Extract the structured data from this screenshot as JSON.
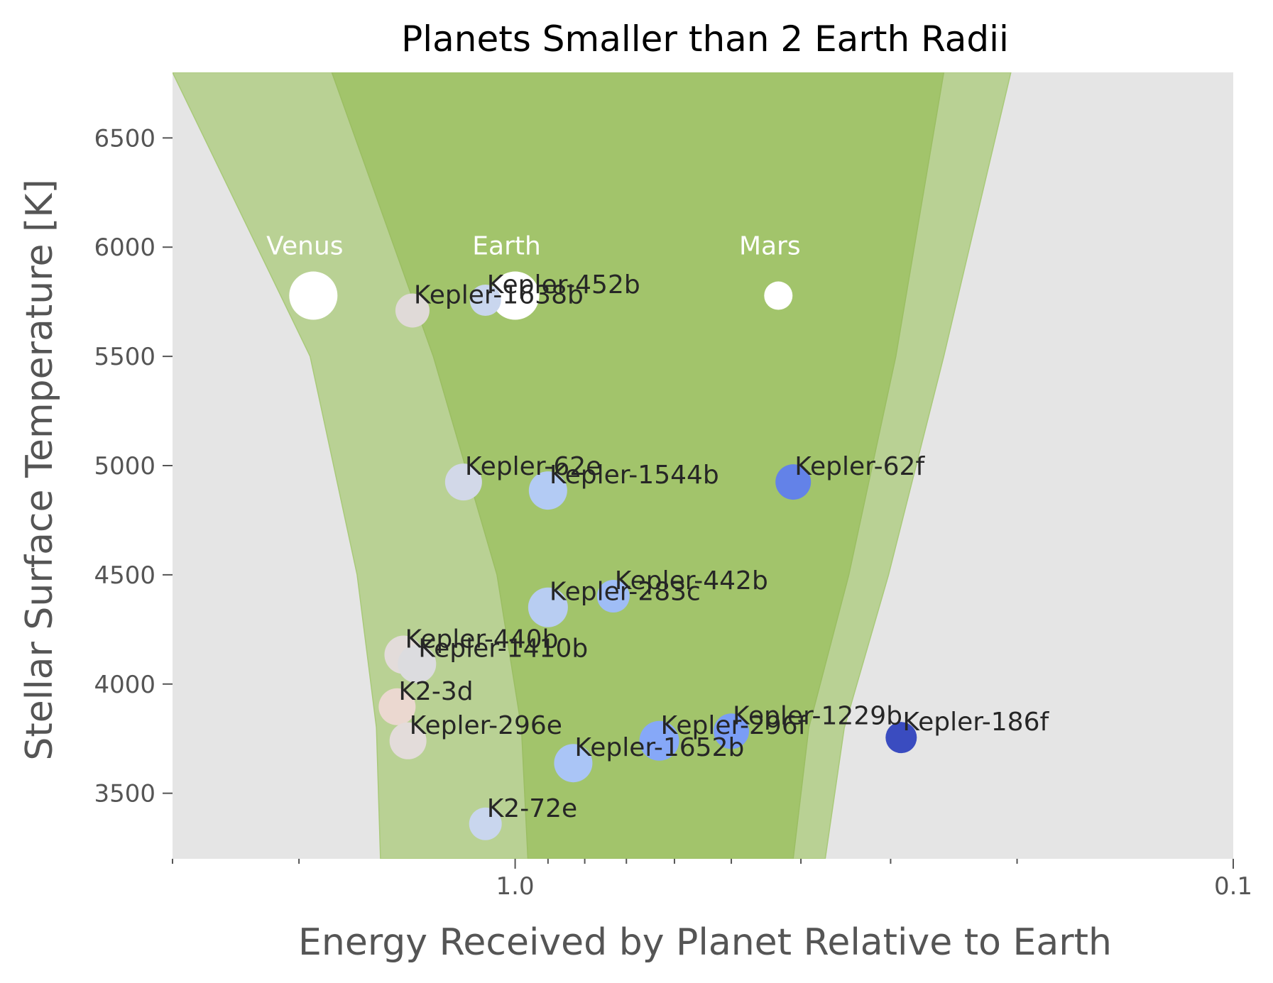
{
  "chart_data": {
    "type": "scatter",
    "title": "Planets Smaller than 2 Earth Radii",
    "xlabel": "Energy Received by Planet Relative to Earth",
    "ylabel": "Stellar Surface Temperature [K]",
    "x_scale": "log",
    "x_reversed": true,
    "xlim": [
      3.0,
      0.1
    ],
    "ylim": [
      3200,
      6800
    ],
    "grid": false,
    "x_ticks": [
      {
        "value": 1.0,
        "label": "1.0"
      },
      {
        "value": 0.1,
        "label": "0.1"
      }
    ],
    "x_minor_ticks": [
      3,
      2,
      0.9,
      0.8,
      0.7,
      0.6,
      0.5,
      0.4,
      0.3,
      0.2
    ],
    "y_ticks": [
      3500,
      4000,
      4500,
      5000,
      5500,
      6000,
      6500
    ],
    "habitable_zone": {
      "optimistic": {
        "inner": [
          [
            3.0,
            6800
          ],
          [
            1.93,
            5500
          ],
          [
            1.66,
            4500
          ],
          [
            1.56,
            3800
          ],
          [
            1.54,
            3200
          ]
        ],
        "outer": [
          [
            0.204,
            6800
          ],
          [
            0.253,
            5500
          ],
          [
            0.302,
            4500
          ],
          [
            0.348,
            3800
          ],
          [
            0.37,
            3200
          ]
        ],
        "color": "#b9d194"
      },
      "conservative": {
        "inner": [
          [
            1.8,
            6800
          ],
          [
            1.3,
            5500
          ],
          [
            1.06,
            4500
          ],
          [
            0.98,
            3800
          ],
          [
            0.96,
            3200
          ]
        ],
        "outer": [
          [
            0.253,
            6800
          ],
          [
            0.295,
            5500
          ],
          [
            0.343,
            4500
          ],
          [
            0.39,
            3800
          ],
          [
            0.41,
            3200
          ]
        ],
        "color": "#a2c46b"
      }
    },
    "solar_system": [
      {
        "name": "Venus",
        "x": 1.91,
        "y": 5778
      },
      {
        "name": "Earth",
        "x": 1.0,
        "y": 5778
      },
      {
        "name": "Mars",
        "x": 0.43,
        "y": 5778
      }
    ],
    "planets": [
      {
        "name": "Kepler-452b",
        "x": 1.1,
        "y": 5757,
        "color": "#c9d6ee"
      },
      {
        "name": "Kepler-1638b",
        "x": 1.39,
        "y": 5710,
        "color": "#e0dad8"
      },
      {
        "name": "Kepler-62e",
        "x": 1.18,
        "y": 4925,
        "color": "#d2d8e8"
      },
      {
        "name": "Kepler-1544b",
        "x": 0.9,
        "y": 4886,
        "color": "#b3cbf4"
      },
      {
        "name": "Kepler-62f",
        "x": 0.41,
        "y": 4925,
        "color": "#6382e8"
      },
      {
        "name": "Kepler-442b",
        "x": 0.73,
        "y": 4402,
        "color": "#9fbdf6"
      },
      {
        "name": "Kepler-283c",
        "x": 0.9,
        "y": 4351,
        "color": "#b8cdf2"
      },
      {
        "name": "Kepler-440b",
        "x": 1.43,
        "y": 4134,
        "color": "#e3dcda"
      },
      {
        "name": "Kepler-1410b",
        "x": 1.37,
        "y": 4092,
        "color": "#dcdcdf"
      },
      {
        "name": "K2-3d",
        "x": 1.46,
        "y": 3896,
        "color": "#ebd8d0"
      },
      {
        "name": "Kepler-296e",
        "x": 1.41,
        "y": 3740,
        "color": "#e3dcda"
      },
      {
        "name": "Kepler-1652b",
        "x": 0.83,
        "y": 3638,
        "color": "#aac5f6"
      },
      {
        "name": "Kepler-296f",
        "x": 0.63,
        "y": 3740,
        "color": "#86a8f8"
      },
      {
        "name": "Kepler-1229b",
        "x": 0.5,
        "y": 3784,
        "color": "#7a9df6"
      },
      {
        "name": "Kepler-186f",
        "x": 0.29,
        "y": 3755,
        "color": "#3a4cc0"
      },
      {
        "name": "K2-72e",
        "x": 1.1,
        "y": 3360,
        "color": "#c9d6ee"
      }
    ]
  }
}
